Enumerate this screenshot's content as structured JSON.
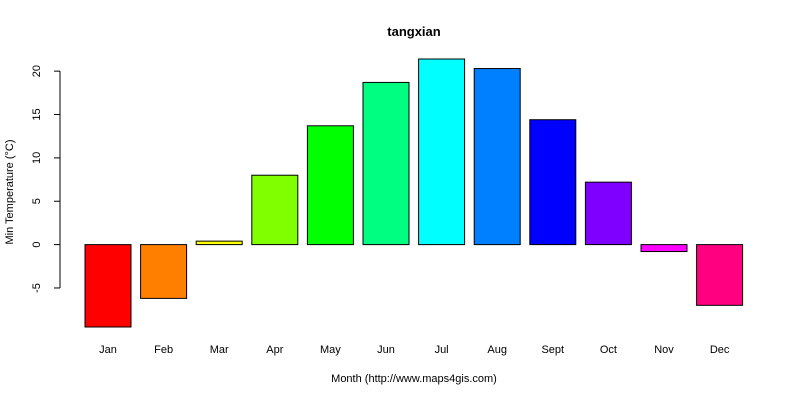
{
  "chart_data": {
    "type": "bar",
    "title": "tangxian",
    "xlabel": "Month (http://www.maps4gis.com)",
    "ylabel": "Min Temperature (°C)",
    "categories": [
      "Jan",
      "Feb",
      "Mar",
      "Apr",
      "May",
      "Jun",
      "Jul",
      "Aug",
      "Sept",
      "Oct",
      "Nov",
      "Dec"
    ],
    "values": [
      -9.5,
      -6.2,
      0.4,
      8.0,
      13.7,
      18.7,
      21.4,
      20.3,
      14.4,
      7.2,
      -0.8,
      -7.0
    ],
    "colors": [
      "#ff0000",
      "#ff8000",
      "#ffff00",
      "#80ff00",
      "#00ff00",
      "#00ff80",
      "#00ffff",
      "#0080ff",
      "#0000ff",
      "#8000ff",
      "#ff00ff",
      "#ff0080"
    ],
    "yticks": [
      -5,
      0,
      5,
      10,
      15,
      20
    ],
    "ylim": [
      -9.5,
      21.4
    ],
    "grid": false,
    "legend": "none"
  }
}
